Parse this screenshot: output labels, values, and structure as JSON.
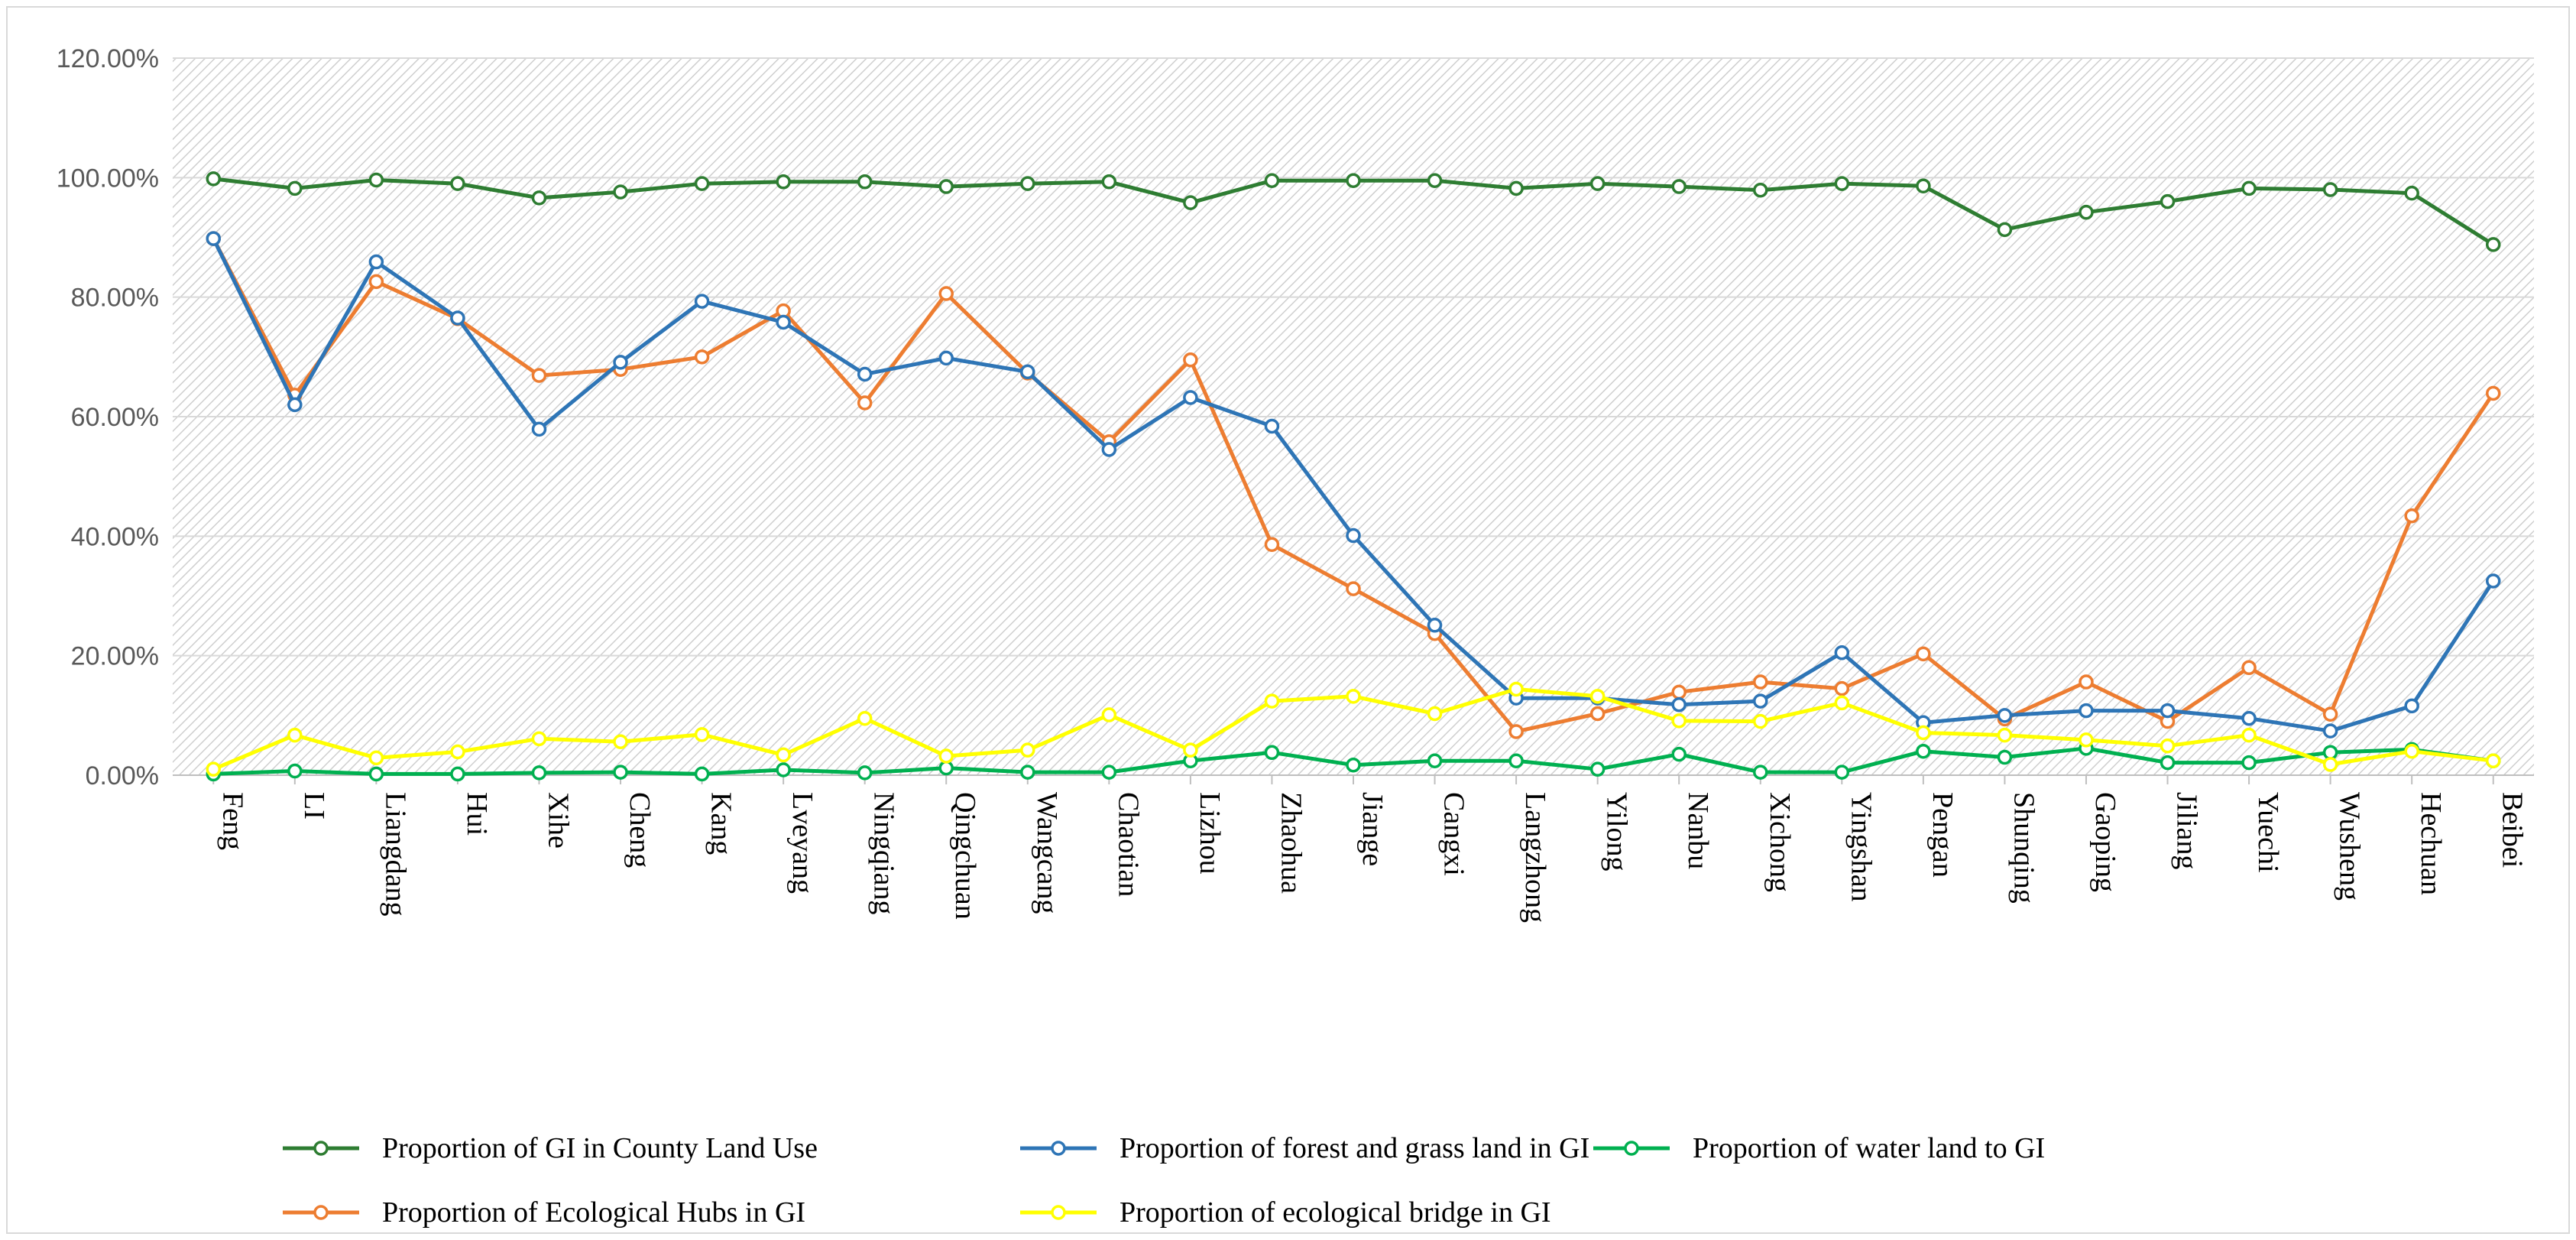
{
  "chart_data": {
    "type": "line",
    "title": "",
    "xlabel": "",
    "ylabel": "",
    "ylim": [
      0,
      120
    ],
    "y_tick_values": [
      0,
      20,
      40,
      60,
      80,
      100,
      120
    ],
    "y_tick_labels": [
      "0.00%",
      "20.00%",
      "40.00%",
      "60.00%",
      "80.00%",
      "100.00%",
      "120.00%"
    ],
    "grid": true,
    "legend_position": "bottom",
    "categories": [
      "Feng",
      "LI",
      "Liangdang",
      "Hui",
      "Xihe",
      "Cheng",
      "Kang",
      "Lveyang",
      "Ningqiang",
      "Qingchuan",
      "Wangcang",
      "Chaotian",
      "Lizhou",
      "Zhaohua",
      "Jiange",
      "Cangxi",
      "Langzhong",
      "Yilong",
      "Nanbu",
      "Xichong",
      "Yingshan",
      "Pengan",
      "Shunqing",
      "Gaoping",
      "Jiliang",
      "Yuechi",
      "Wusheng",
      "Hechuan",
      "Beibei"
    ],
    "series": [
      {
        "name": "Proportion of GI in County Land Use",
        "color": "#2e7d32",
        "values": [
          99.8,
          98.2,
          99.6,
          99.0,
          96.6,
          97.6,
          99.0,
          99.3,
          99.3,
          98.5,
          99.0,
          99.3,
          95.8,
          99.5,
          99.5,
          99.5,
          98.2,
          99.0,
          98.5,
          97.9,
          99.0,
          98.6,
          91.3,
          94.2,
          96.0,
          98.2,
          98.0,
          97.4,
          88.8
        ]
      },
      {
        "name": "Proportion of forest and grass land in GI",
        "color": "#2e75b6",
        "values": [
          89.8,
          62.0,
          85.9,
          76.5,
          57.9,
          69.1,
          79.3,
          75.8,
          67.1,
          69.8,
          67.5,
          54.5,
          63.2,
          58.4,
          40.1,
          25.1,
          12.9,
          12.9,
          11.8,
          12.4,
          20.5,
          8.8,
          10.0,
          10.8,
          10.8,
          9.5,
          7.4,
          11.6,
          32.5
        ]
      },
      {
        "name": "Proportion of water land to GI",
        "color": "#00b050",
        "values": [
          0.2,
          0.7,
          0.2,
          0.2,
          0.4,
          0.5,
          0.2,
          0.9,
          0.4,
          1.2,
          0.5,
          0.5,
          2.4,
          3.8,
          1.7,
          2.4,
          2.4,
          1.0,
          3.5,
          0.5,
          0.5,
          4.0,
          3.0,
          4.5,
          2.1,
          2.1,
          3.8,
          4.3,
          2.4
        ]
      },
      {
        "name": "Proportion of Ecological Hubs in GI",
        "color": "#ed7d31",
        "values": [
          89.8,
          63.6,
          82.6,
          76.4,
          66.9,
          67.9,
          70.0,
          77.7,
          62.3,
          80.6,
          67.3,
          55.8,
          69.5,
          38.6,
          31.2,
          23.7,
          7.3,
          10.3,
          13.9,
          15.6,
          14.5,
          20.3,
          9.4,
          15.6,
          9.0,
          18.0,
          10.2,
          43.4,
          63.9
        ]
      },
      {
        "name": "Proportion of ecological bridge in GI",
        "color": "#ffff00",
        "values": [
          1.0,
          6.7,
          2.9,
          3.9,
          6.1,
          5.6,
          6.8,
          3.4,
          9.5,
          3.2,
          4.2,
          10.1,
          4.2,
          12.4,
          13.2,
          10.3,
          14.4,
          13.2,
          9.1,
          9.0,
          12.1,
          7.1,
          6.7,
          5.9,
          4.9,
          6.7,
          1.8,
          4.0,
          2.4
        ]
      }
    ]
  }
}
